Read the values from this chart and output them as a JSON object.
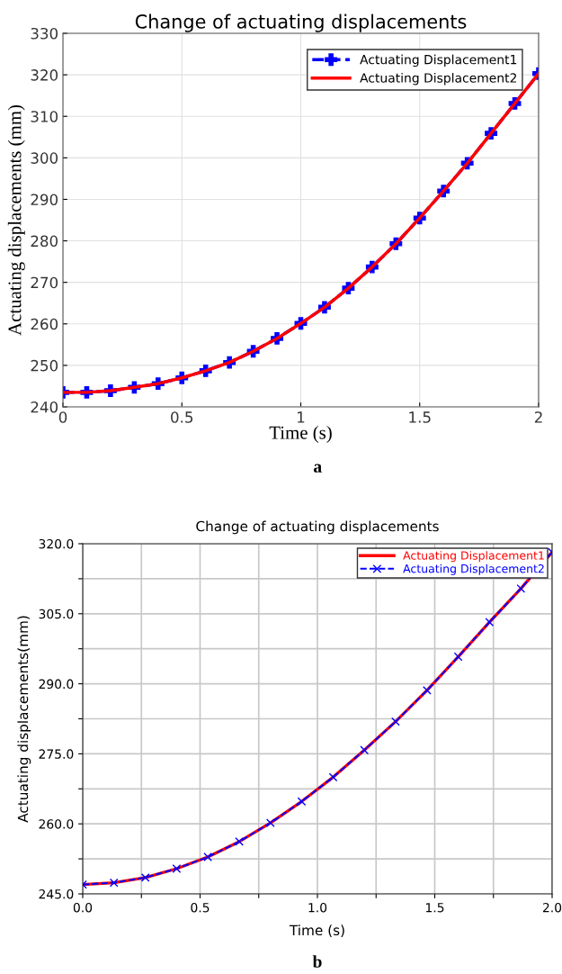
{
  "chart_data": [
    {
      "type": "line",
      "title": "Change of actuating displacements",
      "xlabel": "Time (s)",
      "ylabel": "Actuating displacements (mm)",
      "x": [
        0,
        0.1,
        0.2,
        0.3,
        0.4,
        0.5,
        0.6,
        0.7,
        0.8,
        0.9,
        1.0,
        1.1,
        1.2,
        1.3,
        1.4,
        1.5,
        1.6,
        1.7,
        1.8,
        1.9,
        2.0
      ],
      "series": [
        {
          "name": "Actuating Displacement1",
          "color": "#0000ff",
          "line_style": "dashed",
          "marker": "plus",
          "values": [
            243.5,
            243.5,
            243.9,
            244.7,
            245.6,
            247.0,
            248.7,
            250.7,
            253.4,
            256.5,
            260.1,
            264.0,
            268.6,
            273.7,
            279.3,
            285.5,
            292.0,
            298.7,
            305.9,
            313.1,
            320.3
          ]
        },
        {
          "name": "Actuating Displacement2",
          "color": "#ff0000",
          "line_style": "solid",
          "marker": "none",
          "values": [
            243.5,
            243.5,
            243.9,
            244.7,
            245.6,
            247.0,
            248.7,
            250.7,
            253.4,
            256.5,
            260.1,
            264.0,
            268.6,
            273.7,
            279.3,
            285.5,
            292.0,
            298.7,
            305.9,
            313.1,
            320.3
          ]
        }
      ],
      "xlim": [
        0,
        2
      ],
      "xticks": [
        0,
        0.5,
        1,
        1.5,
        2
      ],
      "ylim": [
        240,
        330
      ],
      "yticks": [
        240,
        250,
        260,
        270,
        280,
        290,
        300,
        310,
        320,
        330
      ],
      "grid": true,
      "legend": "top right",
      "annotations": [
        "a"
      ]
    },
    {
      "type": "line",
      "title": "Change of actuating displacements",
      "xlabel": "Time (s)",
      "ylabel": "Actuating displacements(mm)",
      "x": [
        0,
        0.133,
        0.267,
        0.4,
        0.533,
        0.667,
        0.8,
        0.933,
        1.067,
        1.2,
        1.333,
        1.467,
        1.6,
        1.733,
        1.867,
        2.0
      ],
      "series": [
        {
          "name": "Actuating Displacement1",
          "color": "#ff0000",
          "line_style": "solid",
          "marker": "none",
          "values": [
            247.0,
            247.4,
            248.5,
            250.4,
            252.9,
            256.2,
            260.2,
            264.8,
            270.0,
            275.8,
            281.9,
            288.6,
            295.8,
            303.2,
            310.4,
            318.2
          ]
        },
        {
          "name": "Actuating Displacement2",
          "color": "#0000ff",
          "line_style": "dashed",
          "marker": "cross",
          "values": [
            247.0,
            247.4,
            248.5,
            250.4,
            252.9,
            256.2,
            260.2,
            264.8,
            270.0,
            275.8,
            281.9,
            288.6,
            295.8,
            303.2,
            310.4,
            318.2
          ]
        }
      ],
      "xlim": [
        0,
        2
      ],
      "xticks": [
        {
          "value": 0,
          "label": "0.0"
        },
        {
          "value": 0.25,
          "label": null
        },
        {
          "value": 0.5,
          "label": "0.5"
        },
        {
          "value": 0.75,
          "label": null
        },
        {
          "value": 1.0,
          "label": "1.0"
        },
        {
          "value": 1.25,
          "label": null
        },
        {
          "value": 1.5,
          "label": "1.5"
        },
        {
          "value": 1.75,
          "label": null
        },
        {
          "value": 2.0,
          "label": "2.0"
        }
      ],
      "ylim": [
        245,
        320
      ],
      "yticks": [
        {
          "value": 245,
          "label": "245.0"
        },
        {
          "value": 252.5,
          "label": null
        },
        {
          "value": 260,
          "label": "260.0"
        },
        {
          "value": 267.5,
          "label": null
        },
        {
          "value": 275,
          "label": "275.0"
        },
        {
          "value": 282.5,
          "label": null
        },
        {
          "value": 290,
          "label": "290.0"
        },
        {
          "value": 297.5,
          "label": null
        },
        {
          "value": 305,
          "label": "305.0"
        },
        {
          "value": 312.5,
          "label": null
        },
        {
          "value": 320,
          "label": "320.0"
        }
      ],
      "grid": true,
      "legend": "top right",
      "annotations": [
        "b"
      ]
    }
  ]
}
